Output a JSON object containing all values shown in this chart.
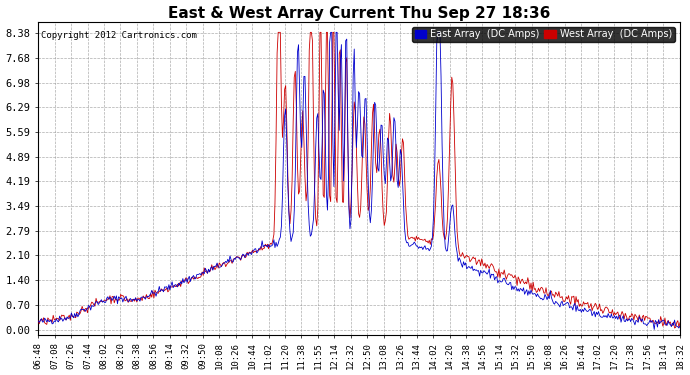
{
  "title": "East & West Array Current Thu Sep 27 18:36",
  "copyright": "Copyright 2012 Cartronics.com",
  "legend_east": "East Array  (DC Amps)",
  "legend_west": "West Array  (DC Amps)",
  "east_color": "#0000cc",
  "west_color": "#cc0000",
  "background_color": "#ffffff",
  "grid_color": "#999999",
  "yticks": [
    0.0,
    0.7,
    1.4,
    2.1,
    2.79,
    3.49,
    4.19,
    4.89,
    5.59,
    6.29,
    6.98,
    7.68,
    8.38
  ],
  "ylim": [
    -0.15,
    8.7
  ],
  "xtick_labels": [
    "06:48",
    "07:08",
    "07:26",
    "07:44",
    "08:02",
    "08:20",
    "08:38",
    "08:56",
    "09:14",
    "09:32",
    "09:50",
    "10:08",
    "10:26",
    "10:44",
    "11:02",
    "11:20",
    "11:38",
    "11:55",
    "12:14",
    "12:32",
    "12:50",
    "13:08",
    "13:26",
    "13:44",
    "14:02",
    "14:20",
    "14:38",
    "14:56",
    "15:14",
    "15:32",
    "15:50",
    "16:08",
    "16:26",
    "16:44",
    "17:02",
    "17:20",
    "17:38",
    "17:56",
    "18:14",
    "18:32"
  ]
}
